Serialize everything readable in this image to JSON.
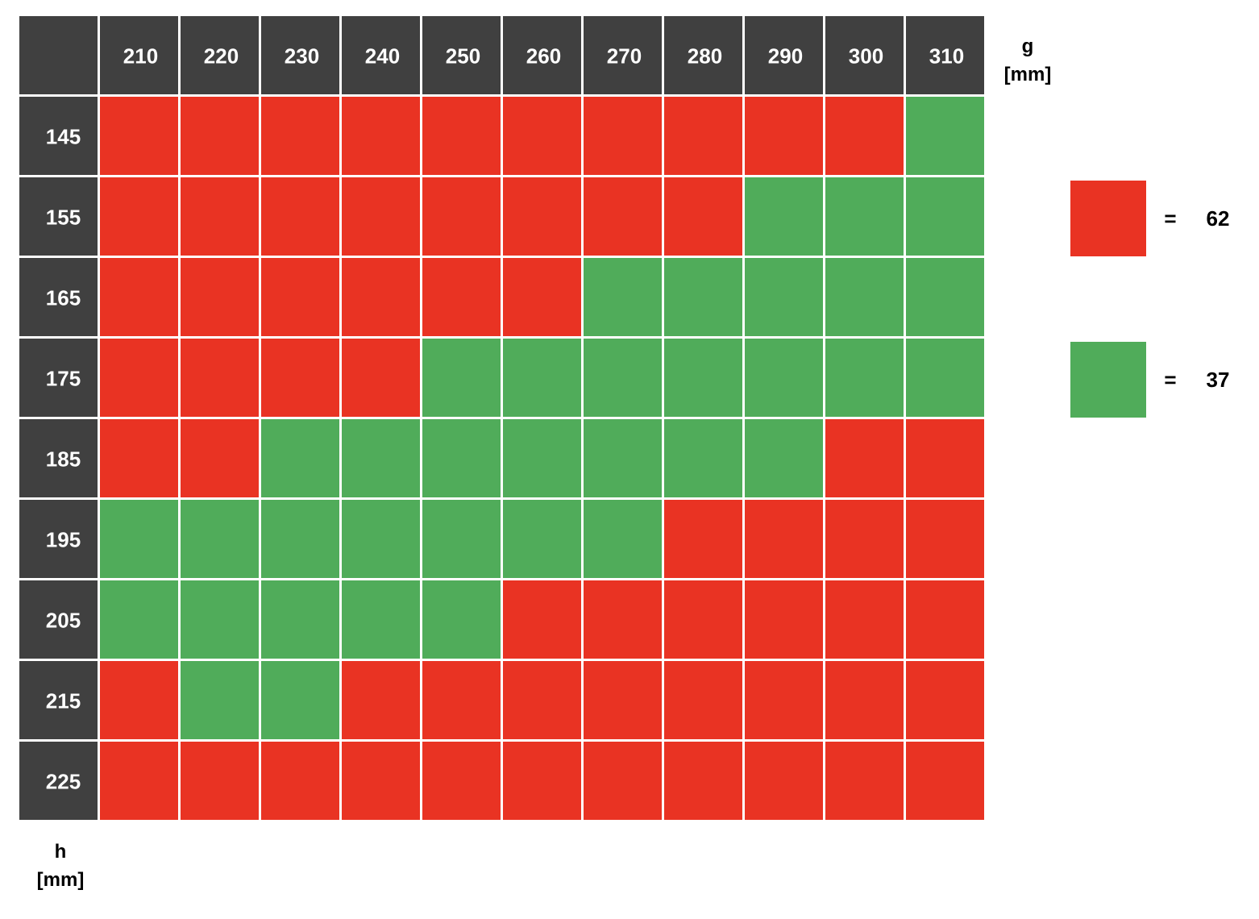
{
  "chart_data": {
    "type": "heatmap",
    "x_label_line1": "g",
    "x_label_line2": "[mm]",
    "y_label_line1": "h",
    "y_label_line2": "[mm]",
    "x": [
      "210",
      "220",
      "230",
      "240",
      "250",
      "260",
      "270",
      "280",
      "290",
      "300",
      "310"
    ],
    "y": [
      "145",
      "155",
      "165",
      "175",
      "185",
      "195",
      "205",
      "215",
      "225"
    ],
    "cells": [
      [
        "R",
        "R",
        "R",
        "R",
        "R",
        "R",
        "R",
        "R",
        "R",
        "R",
        "G"
      ],
      [
        "R",
        "R",
        "R",
        "R",
        "R",
        "R",
        "R",
        "R",
        "G",
        "G",
        "G"
      ],
      [
        "R",
        "R",
        "R",
        "R",
        "R",
        "R",
        "G",
        "G",
        "G",
        "G",
        "G"
      ],
      [
        "R",
        "R",
        "R",
        "R",
        "G",
        "G",
        "G",
        "G",
        "G",
        "G",
        "G"
      ],
      [
        "R",
        "R",
        "G",
        "G",
        "G",
        "G",
        "G",
        "G",
        "G",
        "R",
        "R"
      ],
      [
        "G",
        "G",
        "G",
        "G",
        "G",
        "G",
        "G",
        "R",
        "R",
        "R",
        "R"
      ],
      [
        "G",
        "G",
        "G",
        "G",
        "G",
        "R",
        "R",
        "R",
        "R",
        "R",
        "R"
      ],
      [
        "R",
        "G",
        "G",
        "R",
        "R",
        "R",
        "R",
        "R",
        "R",
        "R",
        "R"
      ],
      [
        "R",
        "R",
        "R",
        "R",
        "R",
        "R",
        "R",
        "R",
        "R",
        "R",
        "R"
      ]
    ],
    "legend": [
      {
        "key": "R",
        "color": "#e93323",
        "equals": "=",
        "value": "62"
      },
      {
        "key": "G",
        "color": "#50ac5a",
        "equals": "=",
        "value": "37"
      }
    ],
    "header_color": "#404040",
    "header_text_color": "#ffffff"
  }
}
